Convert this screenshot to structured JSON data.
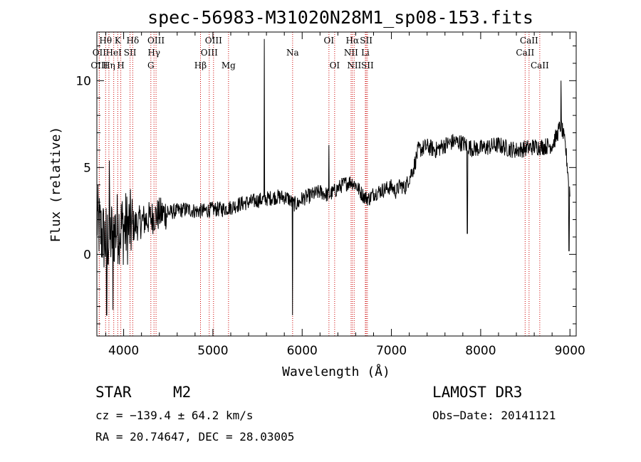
{
  "chart_data": {
    "type": "line",
    "title": "spec-56983-M31020N28M1_sp08-153.fits",
    "xlabel": "Wavelength (Å)",
    "ylabel": "Flux (relative)",
    "xlim": [
      3700,
      9070
    ],
    "ylim": [
      -4.7,
      12.8
    ],
    "x_ticks": [
      4000,
      5000,
      6000,
      7000,
      8000,
      9000
    ],
    "y_ticks": [
      0,
      5,
      10
    ],
    "spectrum_anchors": {
      "x": [
        3700,
        3750,
        3800,
        3850,
        3900,
        3950,
        4000,
        4100,
        4200,
        4300,
        4400,
        4500,
        4600,
        4700,
        4800,
        4900,
        5000,
        5100,
        5200,
        5300,
        5400,
        5500,
        5600,
        5700,
        5800,
        5850,
        5900,
        5950,
        6000,
        6100,
        6200,
        6300,
        6400,
        6450,
        6500,
        6550,
        6600,
        6650,
        6700,
        6750,
        6800,
        6900,
        7000,
        7050,
        7100,
        7150,
        7200,
        7250,
        7300,
        7400,
        7500,
        7600,
        7700,
        7800,
        7900,
        8000,
        8100,
        8200,
        8300,
        8400,
        8500,
        8600,
        8700,
        8800,
        8850,
        8900,
        8950,
        9000
      ],
      "y": [
        2.0,
        1.2,
        0.8,
        1.0,
        1.4,
        1.6,
        1.5,
        1.6,
        1.9,
        2.1,
        2.3,
        2.4,
        2.5,
        2.6,
        2.5,
        2.5,
        2.6,
        2.6,
        2.7,
        2.9,
        3.0,
        3.1,
        3.2,
        3.3,
        3.3,
        3.2,
        2.9,
        2.9,
        3.2,
        3.4,
        3.6,
        3.4,
        3.8,
        4.0,
        4.1,
        4.2,
        4.0,
        3.6,
        3.3,
        3.2,
        3.5,
        3.7,
        3.9,
        3.6,
        4.0,
        3.8,
        4.4,
        5.0,
        6.0,
        6.2,
        6.0,
        6.3,
        6.5,
        6.4,
        6.1,
        6.1,
        6.2,
        6.3,
        6.1,
        6.0,
        6.1,
        6.2,
        6.2,
        6.3,
        6.8,
        7.5,
        6.2,
        3.5
      ]
    },
    "features": [
      {
        "x": 3810,
        "y": -3.5,
        "note": "noise spike"
      },
      {
        "x": 3880,
        "y": -3.2,
        "note": "noise spike"
      },
      {
        "x": 3840,
        "y": 5.4,
        "note": "noise spike"
      },
      {
        "x": 5577,
        "y": 12.4,
        "note": "sky emission"
      },
      {
        "x": 5893,
        "y": -3.5,
        "note": "Na absorption"
      },
      {
        "x": 6300,
        "y": 6.3,
        "note": "OI sky emission"
      },
      {
        "x": 7850,
        "y": 1.2,
        "note": "absorption spike"
      },
      {
        "x": 8900,
        "y": 10.0,
        "note": "emission spike"
      },
      {
        "x": 8990,
        "y": 0.2,
        "note": "edge drop"
      }
    ],
    "spectral_lines": [
      {
        "label": "Hθ",
        "wavelength": 3798,
        "row": 1
      },
      {
        "label": "OII",
        "wavelength": 3727,
        "row": 2
      },
      {
        "label": "HeI",
        "wavelength": 3889,
        "row": 2
      },
      {
        "label": "OIII",
        "wavelength": 3727,
        "row": 3
      },
      {
        "label": "Hη",
        "wavelength": 3835,
        "row": 3
      },
      {
        "label": "K",
        "wavelength": 3934,
        "row": 1
      },
      {
        "label": "H",
        "wavelength": 3968,
        "row": 3
      },
      {
        "label": "SII",
        "wavelength": 4072,
        "row": 2
      },
      {
        "label": "Hδ",
        "wavelength": 4102,
        "row": 1
      },
      {
        "label": "OIII",
        "wavelength": 4363,
        "row": 1
      },
      {
        "label": "Hγ",
        "wavelength": 4340,
        "row": 2
      },
      {
        "label": "G",
        "wavelength": 4305,
        "row": 3
      },
      {
        "label": "Hβ",
        "wavelength": 4861,
        "row": 3
      },
      {
        "label": "OIII",
        "wavelength": 5007,
        "row": 1
      },
      {
        "label": "OIII",
        "wavelength": 4959,
        "row": 2
      },
      {
        "label": "Mg",
        "wavelength": 5175,
        "row": 3
      },
      {
        "label": "Na",
        "wavelength": 5893,
        "row": 2
      },
      {
        "label": "OI",
        "wavelength": 6300,
        "row": 1
      },
      {
        "label": "OI",
        "wavelength": 6364,
        "row": 3
      },
      {
        "label": "Hα",
        "wavelength": 6563,
        "row": 1
      },
      {
        "label": "SII",
        "wavelength": 6717,
        "row": 1
      },
      {
        "label": "NII",
        "wavelength": 6548,
        "row": 2
      },
      {
        "label": "Li",
        "wavelength": 6708,
        "row": 2
      },
      {
        "label": "NII",
        "wavelength": 6583,
        "row": 3
      },
      {
        "label": "SII",
        "wavelength": 6731,
        "row": 3
      },
      {
        "label": "CaII",
        "wavelength": 8542,
        "row": 1
      },
      {
        "label": "CaII",
        "wavelength": 8498,
        "row": 2
      },
      {
        "label": "CaII",
        "wavelength": 8662,
        "row": 3
      }
    ]
  },
  "info": {
    "class": "STAR",
    "subclass": "M2",
    "survey": "LAMOST DR3",
    "cz": "cz = −139.4 ± 64.2 km/s",
    "obs_date": "Obs−Date: 20141121",
    "coords": "RA =  20.74647, DEC =  28.03005"
  },
  "colors": {
    "axis": "#000000",
    "spectrum": "#000000",
    "line_marker": "#cc0000"
  }
}
